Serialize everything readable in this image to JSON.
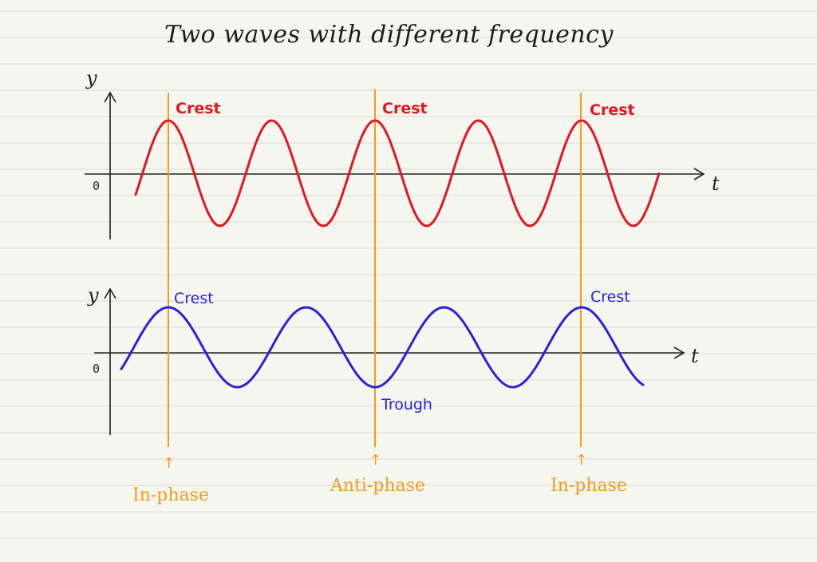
{
  "title": "Two waves with different frequency",
  "wave1": {
    "color": "#e0181e",
    "y_label": "y",
    "zero_label": "0",
    "x_label": "t",
    "crest_labels": [
      "Crest",
      "Crest",
      "Crest"
    ]
  },
  "wave2": {
    "color": "#2a22d8",
    "y_label": "y",
    "zero_label": "0",
    "x_label": "t",
    "crest_labels": [
      "Crest",
      "Crest"
    ],
    "trough_label": "Trough"
  },
  "markers": {
    "color": "#f59a18",
    "labels": [
      "In-phase",
      "Anti-phase",
      "In-phase"
    ],
    "arrow": "↑"
  },
  "colors": {
    "background": "#f6f6f1",
    "ruled_line": "#d9d9d4",
    "axis": "#222222"
  }
}
